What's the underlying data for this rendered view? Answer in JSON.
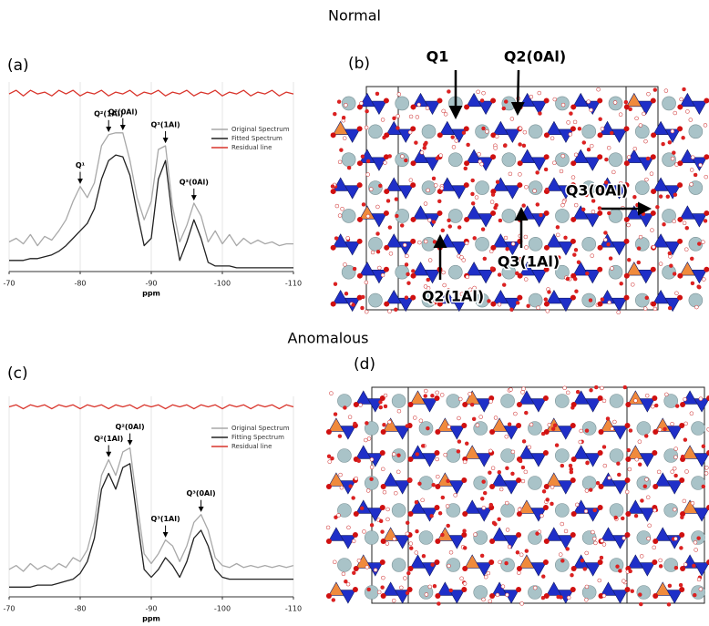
{
  "headings": [
    "Normal",
    "Anomalous"
  ],
  "panel_labels": [
    "(a)",
    "(b)",
    "(c)",
    "(d)"
  ],
  "structure_labels": [
    "Q1",
    "Q2(0Al)",
    "Q3(0Al)",
    "Q3(1Al)",
    "Q2(1Al)"
  ],
  "chart_data": [
    {
      "type": "line",
      "x_label": "ppm",
      "x": [
        -70,
        -71,
        -72,
        -73,
        -74,
        -75,
        -76,
        -77,
        -78,
        -79,
        -80,
        -81,
        -82,
        -83,
        -84,
        -85,
        -86,
        -87,
        -88,
        -89,
        -90,
        -91,
        -92,
        -93,
        -94,
        -95,
        -96,
        -97,
        -98,
        -99,
        -100,
        -101,
        -102,
        -103,
        -104,
        -105,
        -106,
        -107,
        -108,
        -109,
        -110
      ],
      "xlim": [
        -70,
        -110
      ],
      "xticks": [
        -70,
        -80,
        -90,
        -100,
        -110
      ],
      "ylim": [
        0,
        100
      ],
      "grid": true,
      "series": [
        {
          "name": "Original Spectrum",
          "color": "#a8a8a8",
          "values": [
            16,
            18,
            15,
            20,
            14,
            19,
            17,
            22,
            28,
            38,
            46,
            40,
            48,
            68,
            74,
            75,
            75,
            60,
            40,
            28,
            38,
            66,
            68,
            35,
            16,
            25,
            37,
            30,
            16,
            22,
            15,
            20,
            14,
            18,
            15,
            17,
            15,
            16,
            14,
            15,
            15
          ]
        },
        {
          "name": "Fitted Spectrum",
          "color": "#222222",
          "values": [
            6,
            6,
            6,
            7,
            7,
            8,
            9,
            11,
            14,
            18,
            22,
            26,
            34,
            50,
            60,
            63,
            62,
            52,
            32,
            14,
            18,
            50,
            60,
            28,
            6,
            16,
            28,
            18,
            5,
            3,
            3,
            3,
            2,
            2,
            2,
            2,
            2,
            2,
            2,
            2,
            2
          ]
        },
        {
          "name": "Residual line",
          "color": "#d9342b",
          "values": [
            96,
            98,
            95,
            98,
            96,
            97,
            95,
            98,
            96,
            98,
            95,
            97,
            96,
            98,
            95,
            97,
            96,
            98,
            95,
            97,
            96,
            98,
            95,
            97,
            96,
            98,
            95,
            97,
            96,
            98,
            95,
            97,
            96,
            98,
            95,
            97,
            96,
            98,
            95,
            97,
            96
          ]
        }
      ],
      "annotations": [
        {
          "text": "Q¹",
          "x": -80
        },
        {
          "text": "Q²(1Al)",
          "x": -84
        },
        {
          "text": "Q²(0Al)",
          "x": -86
        },
        {
          "text": "Q³(1Al)",
          "x": -92
        },
        {
          "text": "Q³(0Al)",
          "x": -96
        }
      ]
    },
    {
      "type": "line",
      "x_label": "ppm",
      "x": [
        -70,
        -71,
        -72,
        -73,
        -74,
        -75,
        -76,
        -77,
        -78,
        -79,
        -80,
        -81,
        -82,
        -83,
        -84,
        -85,
        -86,
        -87,
        -88,
        -89,
        -90,
        -91,
        -92,
        -93,
        -94,
        -95,
        -96,
        -97,
        -98,
        -99,
        -100,
        -101,
        -102,
        -103,
        -104,
        -105,
        -106,
        -107,
        -108,
        -109,
        -110
      ],
      "xlim": [
        -70,
        -110
      ],
      "xticks": [
        -70,
        -80,
        -90,
        -100,
        -110
      ],
      "ylim": [
        0,
        100
      ],
      "grid": true,
      "series": [
        {
          "name": "Original Spectrum",
          "color": "#a8a8a8",
          "values": [
            14,
            16,
            13,
            17,
            14,
            16,
            14,
            17,
            15,
            20,
            18,
            24,
            38,
            62,
            70,
            62,
            74,
            76,
            48,
            22,
            17,
            22,
            29,
            26,
            18,
            26,
            38,
            42,
            34,
            20,
            16,
            15,
            17,
            15,
            16,
            15,
            16,
            15,
            16,
            15,
            16
          ]
        },
        {
          "name": "Fitting Spectrum",
          "color": "#222222",
          "values": [
            5,
            5,
            5,
            5,
            6,
            6,
            6,
            7,
            8,
            9,
            12,
            18,
            30,
            55,
            63,
            55,
            66,
            68,
            40,
            14,
            10,
            14,
            20,
            16,
            10,
            18,
            30,
            34,
            26,
            14,
            10,
            9,
            9,
            9,
            9,
            9,
            9,
            9,
            9,
            9,
            9
          ]
        },
        {
          "name": "Residual line",
          "color": "#d9342b",
          "values": [
            97,
            98,
            96,
            98,
            97,
            98,
            96,
            98,
            97,
            98,
            96,
            98,
            97,
            98,
            96,
            98,
            97,
            98,
            96,
            98,
            97,
            98,
            96,
            98,
            97,
            98,
            96,
            98,
            97,
            98,
            96,
            98,
            97,
            98,
            96,
            98,
            97,
            98,
            96,
            98,
            97
          ]
        }
      ],
      "annotations": [
        {
          "text": "Q²(1Al)",
          "x": -84
        },
        {
          "text": "Q²(0Al)",
          "x": -87
        },
        {
          "text": "Q³(1Al)",
          "x": -92
        },
        {
          "text": "Q³(0Al)",
          "x": -97
        }
      ]
    }
  ]
}
